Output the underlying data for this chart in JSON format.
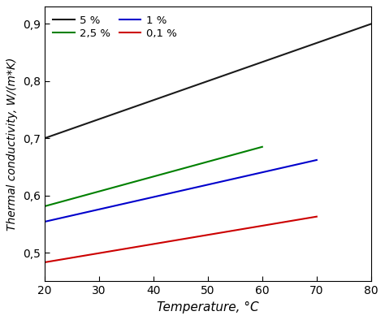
{
  "title": "",
  "xlabel": "Temperature, °C",
  "ylabel": "Thermal conductivity, W/(m*K)",
  "xlim": [
    20,
    80
  ],
  "ylim": [
    0.45,
    0.93
  ],
  "xticks": [
    20,
    30,
    40,
    50,
    60,
    70,
    80
  ],
  "yticks": [
    0.5,
    0.6,
    0.7,
    0.8,
    0.9
  ],
  "ytick_labels": [
    "0,5",
    "0,6",
    "0,7",
    "0,8",
    "0,9"
  ],
  "lines": [
    {
      "label": "5 %",
      "color": "#1a1a1a",
      "x": [
        20,
        80
      ],
      "y": [
        0.7,
        0.9
      ]
    },
    {
      "label": "2,5 %",
      "color": "#008000",
      "x": [
        20,
        60
      ],
      "y": [
        0.581,
        0.685
      ]
    },
    {
      "label": "1 %",
      "color": "#0000cc",
      "x": [
        20,
        70
      ],
      "y": [
        0.554,
        0.662
      ]
    },
    {
      "label": "0,1 %",
      "color": "#cc0000",
      "x": [
        20,
        70
      ],
      "y": [
        0.483,
        0.563
      ]
    }
  ],
  "legend_order": [
    0,
    1,
    2,
    3
  ],
  "linewidth": 1.5,
  "background_color": "#ffffff",
  "grid": false,
  "figsize": [
    4.74,
    3.94
  ],
  "dpi": 100
}
